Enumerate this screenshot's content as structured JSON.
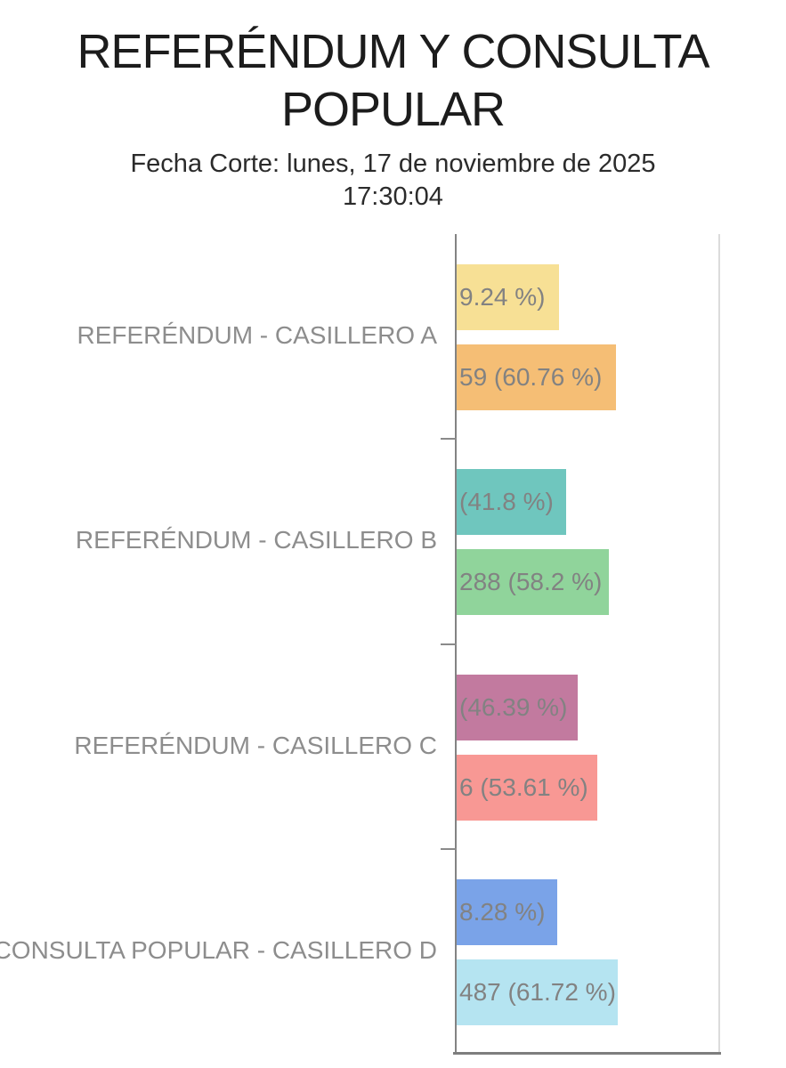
{
  "header": {
    "title_lines": [
      "REFERÉNDUM Y CONSULTA",
      "POPULAR"
    ],
    "title": "REFERÉNDUM Y CONSULTA POPULAR",
    "subtitle_line1": "Fecha Corte: lunes, 17 de noviembre de 2025",
    "subtitle_line2": "17:30:04"
  },
  "colors": {
    "title_text": "#1c1c1c",
    "chart_text": "#8d8d8d",
    "axis": "#838383",
    "right_border": "#dcdcdc"
  },
  "chart_data": {
    "type": "bar",
    "orientation": "horizontal",
    "title": "REFERÉNDUM Y CONSULTA POPULAR",
    "xlabel": "",
    "ylabel": "",
    "xlim": [
      0,
      100
    ],
    "grid": false,
    "legend": false,
    "value_labels_inside_bars": true,
    "value_labels_clipped_at_left_edge": true,
    "categories": [
      "REFERÉNDUM - CASILLERO A",
      "REFERÉNDUM - CASILLERO B",
      "REFERÉNDUM - CASILLERO C",
      "CONSULTA POPULAR - CASILLERO D"
    ],
    "groups": [
      {
        "label": "REFERÉNDUM - CASILLERO A",
        "bars": [
          {
            "visible_label": "9.24 %)",
            "pct": 39.24,
            "color": "#f7e095"
          },
          {
            "visible_label": "59 (60.76 %)",
            "pct": 60.76,
            "color": "#f5be75"
          }
        ]
      },
      {
        "label": "REFERÉNDUM - CASILLERO B",
        "bars": [
          {
            "visible_label": "(41.8 %)",
            "pct": 41.8,
            "color": "#6fc6be"
          },
          {
            "visible_label": "288 (58.2 %)",
            "pct": 58.2,
            "color": "#90d49b"
          }
        ]
      },
      {
        "label": "REFERÉNDUM - CASILLERO C",
        "bars": [
          {
            "visible_label": "(46.39 %)",
            "pct": 46.39,
            "color": "#c27a9f"
          },
          {
            "visible_label": "6 (53.61 %)",
            "pct": 53.61,
            "color": "#f89894"
          }
        ]
      },
      {
        "label": "CONSULTA POPULAR - CASILLERO D",
        "bars": [
          {
            "visible_label": "8.28 %)",
            "pct": 38.28,
            "color": "#7aa3e8"
          },
          {
            "visible_label": "487 (61.72 %)",
            "pct": 61.72,
            "color": "#b5e4f1"
          }
        ]
      }
    ]
  }
}
